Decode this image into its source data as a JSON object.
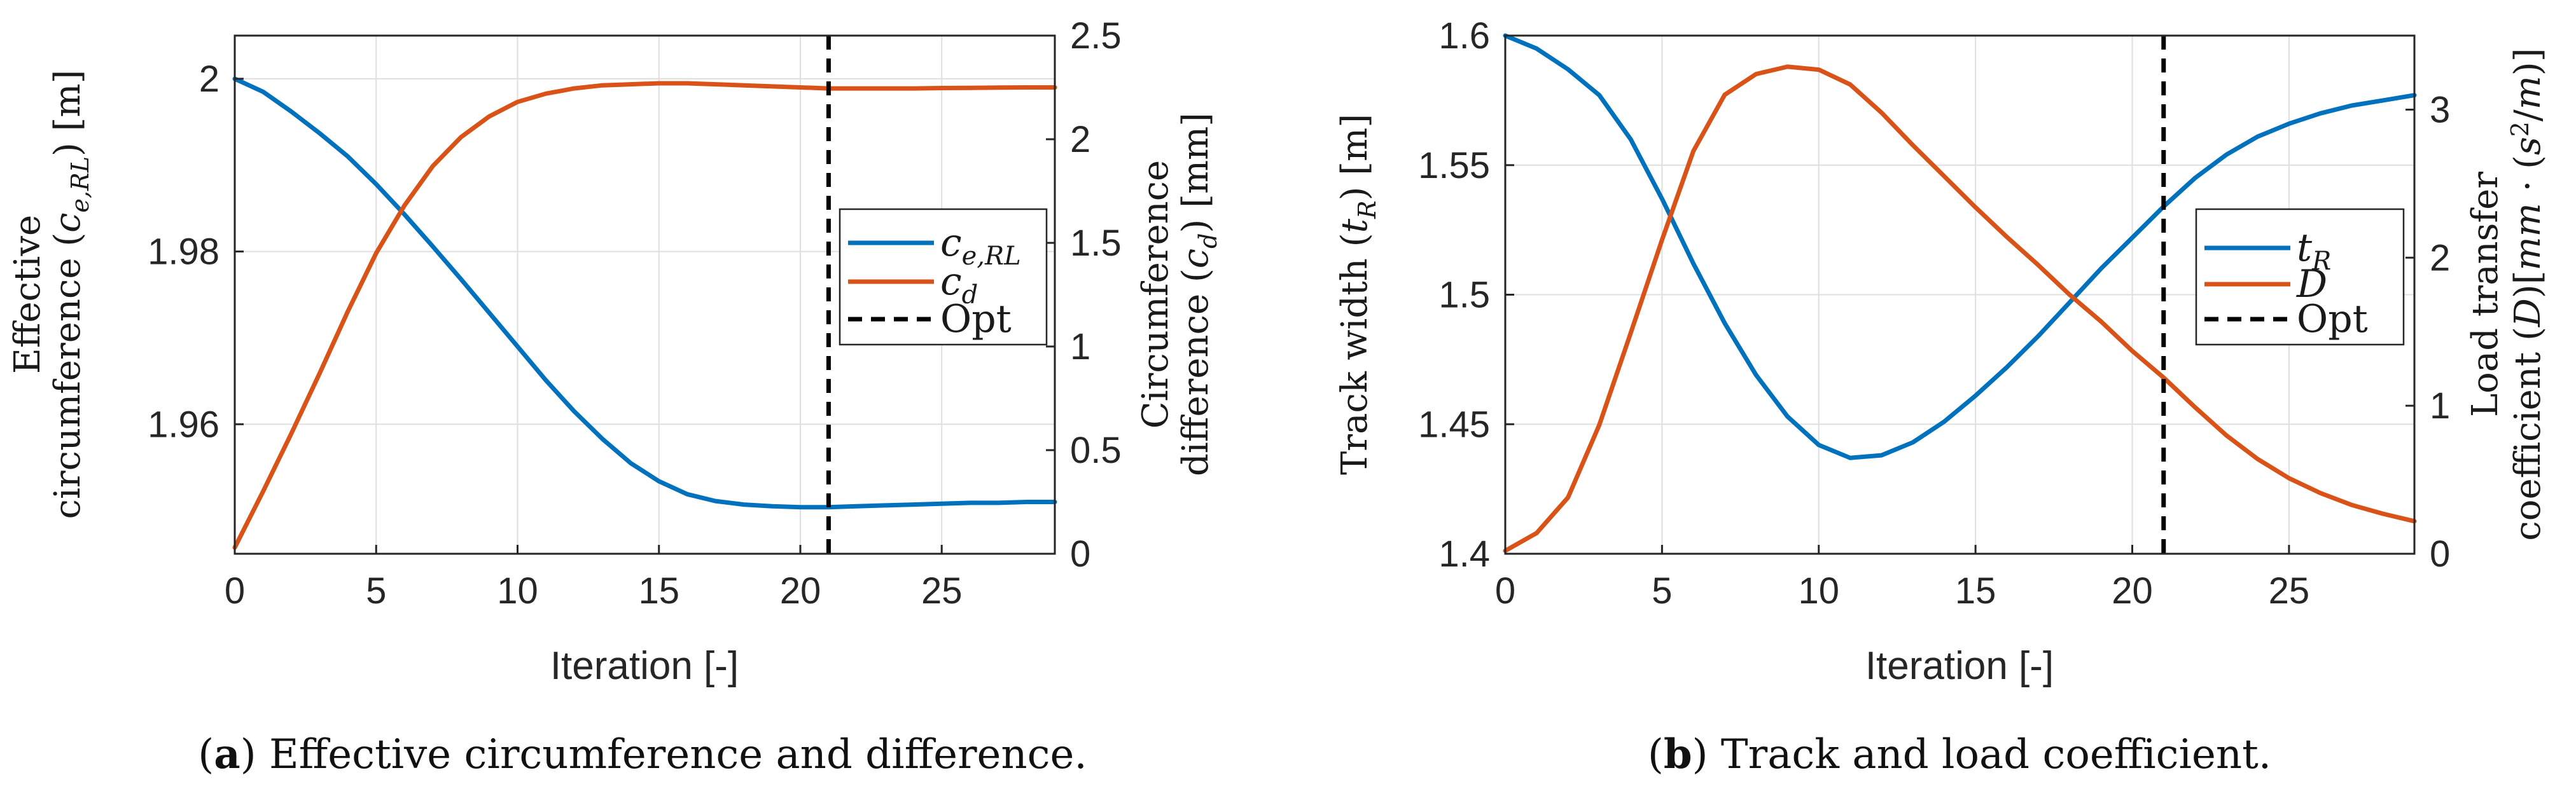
{
  "chart_data": [
    {
      "type": "line",
      "panel_label": "a",
      "caption": "Effective circumference and difference.",
      "xlabel": "Iteration [-]",
      "xlim": [
        0,
        29
      ],
      "xticks": [
        0,
        5,
        10,
        15,
        20,
        25
      ],
      "grid": true,
      "y_left": {
        "label_lines": [
          "Effective",
          "circumference (c_e,RL) [m]"
        ],
        "lim": [
          1.945,
          2.005
        ],
        "ticks": [
          1.96,
          1.98,
          2.0
        ],
        "tick_labels": [
          "1.96",
          "1.98",
          "2"
        ]
      },
      "y_right": {
        "label_lines": [
          "Circumference",
          "difference (c_d) [mm]"
        ],
        "lim": [
          0,
          2.5
        ],
        "ticks": [
          0,
          0.5,
          1,
          1.5,
          2,
          2.5
        ],
        "tick_labels": [
          "0",
          "0.5",
          "1",
          "1.5",
          "2",
          "2.5"
        ]
      },
      "x": [
        0,
        1,
        2,
        3,
        4,
        5,
        6,
        7,
        8,
        9,
        10,
        11,
        12,
        13,
        14,
        15,
        16,
        17,
        18,
        19,
        20,
        21,
        22,
        23,
        24,
        25,
        26,
        27,
        28,
        29
      ],
      "series": [
        {
          "name": "c_e,RL",
          "axis": "left",
          "color": "#0072BD",
          "values": [
            2.0,
            1.9985,
            1.9962,
            1.9937,
            1.991,
            1.9878,
            1.9843,
            1.9806,
            1.9768,
            1.9729,
            1.969,
            1.9651,
            1.9615,
            1.9583,
            1.9555,
            1.9534,
            1.9519,
            1.9511,
            1.9507,
            1.9505,
            1.9504,
            1.9504,
            1.9505,
            1.9506,
            1.9507,
            1.9508,
            1.9509,
            1.9509,
            1.951,
            1.951
          ]
        },
        {
          "name": "c_d",
          "axis": "right",
          "color": "#D95319",
          "values": [
            0.03,
            0.3,
            0.58,
            0.87,
            1.17,
            1.45,
            1.68,
            1.87,
            2.01,
            2.11,
            2.18,
            2.22,
            2.245,
            2.26,
            2.265,
            2.27,
            2.27,
            2.265,
            2.26,
            2.255,
            2.25,
            2.245,
            2.245,
            2.245,
            2.245,
            2.247,
            2.248,
            2.249,
            2.25,
            2.25
          ]
        }
      ],
      "vline": {
        "name": "Opt",
        "x": 21,
        "style": "dashed",
        "color": "#000000"
      },
      "legend": {
        "placement": "right",
        "entries": [
          "c_e,RL",
          "c_d",
          "Opt"
        ]
      }
    },
    {
      "type": "line",
      "panel_label": "b",
      "caption": "Track and load coefficient.",
      "xlabel": "Iteration [-]",
      "xlim": [
        0,
        29
      ],
      "xticks": [
        0,
        5,
        10,
        15,
        20,
        25
      ],
      "grid": true,
      "y_left": {
        "label_lines": [
          "Track width (t_R) [m]"
        ],
        "lim": [
          1.4,
          1.6
        ],
        "ticks": [
          1.4,
          1.45,
          1.5,
          1.55,
          1.6
        ],
        "tick_labels": [
          "1.4",
          "1.45",
          "1.5",
          "1.55",
          "1.6"
        ]
      },
      "y_right": {
        "label_lines": [
          "Load transfer",
          "coefficient (D)[mm·(s²/m)]"
        ],
        "lim": [
          0,
          3.5
        ],
        "ticks": [
          0,
          1,
          2,
          3
        ],
        "tick_labels": [
          "0",
          "1",
          "2",
          "3"
        ]
      },
      "x": [
        0,
        1,
        2,
        3,
        4,
        5,
        6,
        7,
        8,
        9,
        10,
        11,
        12,
        13,
        14,
        15,
        16,
        17,
        18,
        19,
        20,
        21,
        22,
        23,
        24,
        25,
        26,
        27,
        28,
        29
      ],
      "series": [
        {
          "name": "t_R",
          "axis": "left",
          "color": "#0072BD",
          "values": [
            1.6,
            1.595,
            1.587,
            1.577,
            1.56,
            1.537,
            1.512,
            1.489,
            1.469,
            1.453,
            1.442,
            1.437,
            1.438,
            1.443,
            1.451,
            1.461,
            1.472,
            1.484,
            1.497,
            1.51,
            1.522,
            1.534,
            1.545,
            1.554,
            1.561,
            1.566,
            1.57,
            1.573,
            1.575,
            1.577
          ]
        },
        {
          "name": "D",
          "axis": "right",
          "color": "#D95319",
          "values": [
            0.02,
            0.14,
            0.38,
            0.87,
            1.49,
            2.12,
            2.72,
            3.1,
            3.24,
            3.29,
            3.27,
            3.17,
            2.98,
            2.76,
            2.55,
            2.34,
            2.14,
            1.95,
            1.75,
            1.57,
            1.37,
            1.19,
            0.99,
            0.8,
            0.64,
            0.51,
            0.41,
            0.33,
            0.27,
            0.22
          ]
        }
      ],
      "vline": {
        "name": "Opt",
        "x": 21,
        "style": "dashed",
        "color": "#000000"
      },
      "legend": {
        "placement": "right",
        "entries": [
          "t_R",
          "D",
          "Opt"
        ]
      }
    }
  ]
}
